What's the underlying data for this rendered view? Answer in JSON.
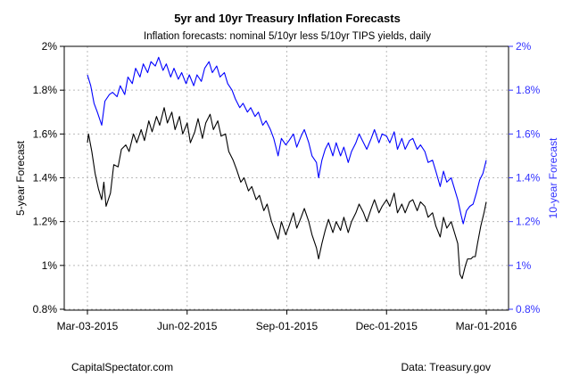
{
  "chart_data": {
    "type": "line",
    "title": "5yr and 10yr Treasury Inflation Forecasts",
    "subtitle": "Inflation forecasts: nominal 5/10yr less 5/10yr TIPS yields, daily",
    "ylabel_left": "5-year Forecast",
    "ylabel_right": "10-year Forecast",
    "xlabel": "",
    "xlim": [
      "2015-03-03",
      "2016-03-01"
    ],
    "ylim": [
      0.8,
      2.0
    ],
    "y_ticks": [
      "0.8%",
      "1%",
      "1.2%",
      "1.4%",
      "1.6%",
      "1.8%",
      "2%"
    ],
    "y_tick_values": [
      0.8,
      1.0,
      1.2,
      1.4,
      1.6,
      1.8,
      2.0
    ],
    "x_ticks": [
      "Mar-03-2015",
      "Jun-02-2015",
      "Sep-01-2015",
      "Dec-01-2015",
      "Mar-01-2016"
    ],
    "x_tick_dates": [
      "2015-03-03",
      "2015-06-02",
      "2015-09-01",
      "2015-12-01",
      "2016-03-01"
    ],
    "grid": true,
    "colors": {
      "5yr": "#000000",
      "10yr": "#0000ff",
      "right_axis": "#3333ff",
      "grid": "#bbbbbb"
    },
    "series": [
      {
        "key": "5yr",
        "color": "#000000",
        "points": [
          [
            "2015-03-03",
            1.56
          ],
          [
            "2015-03-04",
            1.6
          ],
          [
            "2015-03-07",
            1.52
          ],
          [
            "2015-03-10",
            1.42
          ],
          [
            "2015-03-13",
            1.35
          ],
          [
            "2015-03-16",
            1.3
          ],
          [
            "2015-03-18",
            1.38
          ],
          [
            "2015-03-20",
            1.27
          ],
          [
            "2015-03-24",
            1.33
          ],
          [
            "2015-03-27",
            1.46
          ],
          [
            "2015-03-31",
            1.45
          ],
          [
            "2015-04-03",
            1.53
          ],
          [
            "2015-04-07",
            1.55
          ],
          [
            "2015-04-10",
            1.52
          ],
          [
            "2015-04-14",
            1.6
          ],
          [
            "2015-04-17",
            1.56
          ],
          [
            "2015-04-21",
            1.62
          ],
          [
            "2015-04-24",
            1.57
          ],
          [
            "2015-04-28",
            1.66
          ],
          [
            "2015-05-01",
            1.61
          ],
          [
            "2015-05-05",
            1.68
          ],
          [
            "2015-05-08",
            1.64
          ],
          [
            "2015-05-12",
            1.72
          ],
          [
            "2015-05-15",
            1.65
          ],
          [
            "2015-05-19",
            1.7
          ],
          [
            "2015-05-22",
            1.62
          ],
          [
            "2015-05-26",
            1.68
          ],
          [
            "2015-05-29",
            1.6
          ],
          [
            "2015-06-02",
            1.65
          ],
          [
            "2015-06-05",
            1.56
          ],
          [
            "2015-06-09",
            1.61
          ],
          [
            "2015-06-12",
            1.67
          ],
          [
            "2015-06-16",
            1.58
          ],
          [
            "2015-06-19",
            1.65
          ],
          [
            "2015-06-23",
            1.69
          ],
          [
            "2015-06-26",
            1.62
          ],
          [
            "2015-06-30",
            1.66
          ],
          [
            "2015-07-03",
            1.59
          ],
          [
            "2015-07-07",
            1.6
          ],
          [
            "2015-07-10",
            1.52
          ],
          [
            "2015-07-14",
            1.48
          ],
          [
            "2015-07-17",
            1.44
          ],
          [
            "2015-07-21",
            1.38
          ],
          [
            "2015-07-24",
            1.4
          ],
          [
            "2015-07-28",
            1.34
          ],
          [
            "2015-07-31",
            1.36
          ],
          [
            "2015-08-04",
            1.3
          ],
          [
            "2015-08-07",
            1.32
          ],
          [
            "2015-08-11",
            1.25
          ],
          [
            "2015-08-14",
            1.28
          ],
          [
            "2015-08-18",
            1.2
          ],
          [
            "2015-08-21",
            1.16
          ],
          [
            "2015-08-24",
            1.12
          ],
          [
            "2015-08-27",
            1.2
          ],
          [
            "2015-08-31",
            1.14
          ],
          [
            "2015-09-03",
            1.18
          ],
          [
            "2015-09-07",
            1.24
          ],
          [
            "2015-09-10",
            1.17
          ],
          [
            "2015-09-14",
            1.22
          ],
          [
            "2015-09-17",
            1.26
          ],
          [
            "2015-09-21",
            1.2
          ],
          [
            "2015-09-24",
            1.14
          ],
          [
            "2015-09-28",
            1.08
          ],
          [
            "2015-09-30",
            1.03
          ],
          [
            "2015-10-03",
            1.1
          ],
          [
            "2015-10-06",
            1.16
          ],
          [
            "2015-10-09",
            1.21
          ],
          [
            "2015-10-13",
            1.15
          ],
          [
            "2015-10-16",
            1.2
          ],
          [
            "2015-10-20",
            1.16
          ],
          [
            "2015-10-23",
            1.22
          ],
          [
            "2015-10-27",
            1.15
          ],
          [
            "2015-10-30",
            1.2
          ],
          [
            "2015-11-03",
            1.24
          ],
          [
            "2015-11-06",
            1.28
          ],
          [
            "2015-11-10",
            1.24
          ],
          [
            "2015-11-13",
            1.2
          ],
          [
            "2015-11-17",
            1.26
          ],
          [
            "2015-11-20",
            1.3
          ],
          [
            "2015-11-24",
            1.24
          ],
          [
            "2015-11-27",
            1.27
          ],
          [
            "2015-12-01",
            1.3
          ],
          [
            "2015-12-04",
            1.27
          ],
          [
            "2015-12-08",
            1.33
          ],
          [
            "2015-12-11",
            1.24
          ],
          [
            "2015-12-15",
            1.28
          ],
          [
            "2015-12-18",
            1.24
          ],
          [
            "2015-12-22",
            1.29
          ],
          [
            "2015-12-25",
            1.3
          ],
          [
            "2015-12-29",
            1.25
          ],
          [
            "2016-01-01",
            1.29
          ],
          [
            "2016-01-05",
            1.27
          ],
          [
            "2016-01-08",
            1.22
          ],
          [
            "2016-01-12",
            1.24
          ],
          [
            "2016-01-15",
            1.18
          ],
          [
            "2016-01-19",
            1.13
          ],
          [
            "2016-01-22",
            1.22
          ],
          [
            "2016-01-25",
            1.17
          ],
          [
            "2016-01-29",
            1.2
          ],
          [
            "2016-02-01",
            1.15
          ],
          [
            "2016-02-04",
            1.1
          ],
          [
            "2016-02-06",
            0.96
          ],
          [
            "2016-02-08",
            0.94
          ],
          [
            "2016-02-11",
            1.0
          ],
          [
            "2016-02-13",
            1.03
          ],
          [
            "2016-02-16",
            1.03
          ],
          [
            "2016-02-18",
            1.04
          ],
          [
            "2016-02-20",
            1.04
          ],
          [
            "2016-02-22",
            1.1
          ],
          [
            "2016-02-25",
            1.18
          ],
          [
            "2016-02-28",
            1.24
          ],
          [
            "2016-03-01",
            1.29
          ]
        ]
      },
      {
        "key": "10yr",
        "color": "#0000ff",
        "points": [
          [
            "2015-03-03",
            1.87
          ],
          [
            "2015-03-06",
            1.82
          ],
          [
            "2015-03-09",
            1.74
          ],
          [
            "2015-03-12",
            1.7
          ],
          [
            "2015-03-16",
            1.64
          ],
          [
            "2015-03-19",
            1.75
          ],
          [
            "2015-03-23",
            1.78
          ],
          [
            "2015-03-26",
            1.79
          ],
          [
            "2015-03-30",
            1.77
          ],
          [
            "2015-04-02",
            1.82
          ],
          [
            "2015-04-06",
            1.78
          ],
          [
            "2015-04-09",
            1.86
          ],
          [
            "2015-04-13",
            1.83
          ],
          [
            "2015-04-16",
            1.9
          ],
          [
            "2015-04-20",
            1.86
          ],
          [
            "2015-04-23",
            1.92
          ],
          [
            "2015-04-27",
            1.88
          ],
          [
            "2015-04-30",
            1.93
          ],
          [
            "2015-05-04",
            1.91
          ],
          [
            "2015-05-07",
            1.95
          ],
          [
            "2015-05-11",
            1.89
          ],
          [
            "2015-05-14",
            1.92
          ],
          [
            "2015-05-18",
            1.86
          ],
          [
            "2015-05-21",
            1.9
          ],
          [
            "2015-05-25",
            1.85
          ],
          [
            "2015-05-28",
            1.88
          ],
          [
            "2015-06-01",
            1.83
          ],
          [
            "2015-06-04",
            1.87
          ],
          [
            "2015-06-08",
            1.82
          ],
          [
            "2015-06-11",
            1.87
          ],
          [
            "2015-06-15",
            1.84
          ],
          [
            "2015-06-18",
            1.9
          ],
          [
            "2015-06-22",
            1.93
          ],
          [
            "2015-06-25",
            1.88
          ],
          [
            "2015-06-29",
            1.91
          ],
          [
            "2015-07-02",
            1.86
          ],
          [
            "2015-07-06",
            1.88
          ],
          [
            "2015-07-09",
            1.83
          ],
          [
            "2015-07-13",
            1.8
          ],
          [
            "2015-07-16",
            1.76
          ],
          [
            "2015-07-20",
            1.72
          ],
          [
            "2015-07-23",
            1.74
          ],
          [
            "2015-07-27",
            1.7
          ],
          [
            "2015-07-30",
            1.72
          ],
          [
            "2015-08-03",
            1.68
          ],
          [
            "2015-08-06",
            1.7
          ],
          [
            "2015-08-10",
            1.64
          ],
          [
            "2015-08-13",
            1.66
          ],
          [
            "2015-08-17",
            1.62
          ],
          [
            "2015-08-20",
            1.58
          ],
          [
            "2015-08-24",
            1.5
          ],
          [
            "2015-08-27",
            1.58
          ],
          [
            "2015-08-31",
            1.55
          ],
          [
            "2015-09-03",
            1.57
          ],
          [
            "2015-09-07",
            1.6
          ],
          [
            "2015-09-10",
            1.54
          ],
          [
            "2015-09-14",
            1.59
          ],
          [
            "2015-09-17",
            1.62
          ],
          [
            "2015-09-21",
            1.56
          ],
          [
            "2015-09-24",
            1.5
          ],
          [
            "2015-09-28",
            1.47
          ],
          [
            "2015-09-30",
            1.4
          ],
          [
            "2015-10-03",
            1.48
          ],
          [
            "2015-10-06",
            1.53
          ],
          [
            "2015-10-09",
            1.56
          ],
          [
            "2015-10-13",
            1.5
          ],
          [
            "2015-10-16",
            1.56
          ],
          [
            "2015-10-20",
            1.5
          ],
          [
            "2015-10-23",
            1.54
          ],
          [
            "2015-10-27",
            1.47
          ],
          [
            "2015-10-30",
            1.52
          ],
          [
            "2015-11-03",
            1.56
          ],
          [
            "2015-11-06",
            1.6
          ],
          [
            "2015-11-10",
            1.56
          ],
          [
            "2015-11-13",
            1.53
          ],
          [
            "2015-11-17",
            1.58
          ],
          [
            "2015-11-20",
            1.62
          ],
          [
            "2015-11-24",
            1.56
          ],
          [
            "2015-11-27",
            1.6
          ],
          [
            "2015-12-01",
            1.59
          ],
          [
            "2015-12-04",
            1.56
          ],
          [
            "2015-12-08",
            1.61
          ],
          [
            "2015-12-11",
            1.53
          ],
          [
            "2015-12-15",
            1.58
          ],
          [
            "2015-12-18",
            1.53
          ],
          [
            "2015-12-22",
            1.57
          ],
          [
            "2015-12-25",
            1.58
          ],
          [
            "2015-12-29",
            1.53
          ],
          [
            "2016-01-01",
            1.55
          ],
          [
            "2016-01-05",
            1.52
          ],
          [
            "2016-01-08",
            1.47
          ],
          [
            "2016-01-12",
            1.48
          ],
          [
            "2016-01-15",
            1.43
          ],
          [
            "2016-01-19",
            1.36
          ],
          [
            "2016-01-22",
            1.43
          ],
          [
            "2016-01-25",
            1.38
          ],
          [
            "2016-01-29",
            1.4
          ],
          [
            "2016-02-01",
            1.35
          ],
          [
            "2016-02-04",
            1.3
          ],
          [
            "2016-02-07",
            1.23
          ],
          [
            "2016-02-09",
            1.19
          ],
          [
            "2016-02-12",
            1.25
          ],
          [
            "2016-02-15",
            1.27
          ],
          [
            "2016-02-18",
            1.28
          ],
          [
            "2016-02-21",
            1.33
          ],
          [
            "2016-02-24",
            1.39
          ],
          [
            "2016-02-27",
            1.42
          ],
          [
            "2016-03-01",
            1.48
          ]
        ]
      }
    ]
  },
  "footer": {
    "left": "CapitalSpectator.com",
    "right": "Data: Treasury.gov"
  }
}
